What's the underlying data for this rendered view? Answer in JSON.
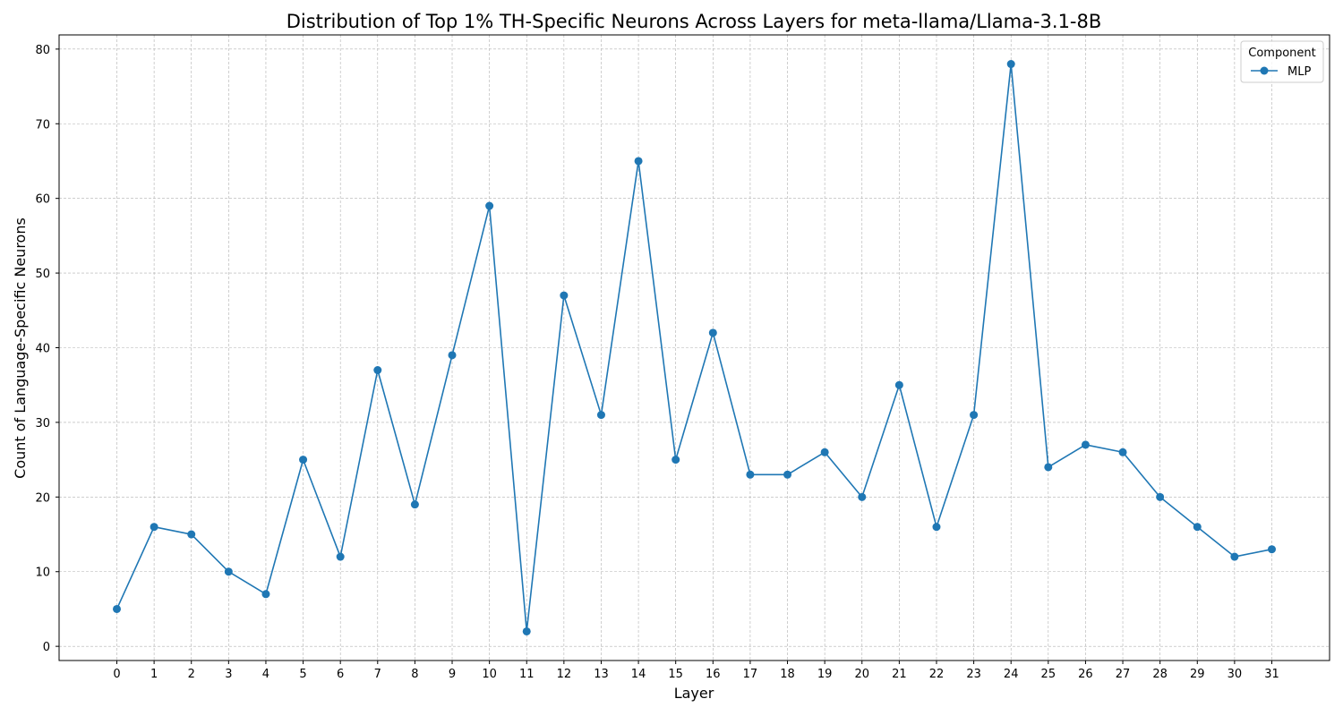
{
  "chart_data": {
    "type": "line",
    "title": "Distribution of Top 1% TH-Specific Neurons Across Layers for meta-llama/Llama-3.1-8B",
    "xlabel": "Layer",
    "ylabel": "Count of Language-Specific Neurons",
    "x": [
      0,
      1,
      2,
      3,
      4,
      5,
      6,
      7,
      8,
      9,
      10,
      11,
      12,
      13,
      14,
      15,
      16,
      17,
      18,
      19,
      20,
      21,
      22,
      23,
      24,
      25,
      26,
      27,
      28,
      29,
      30,
      31
    ],
    "series": [
      {
        "name": "MLP",
        "color": "#1f77b4",
        "marker": "circle",
        "values": [
          5,
          16,
          15,
          10,
          7,
          25,
          12,
          37,
          19,
          39,
          59,
          2,
          47,
          31,
          65,
          25,
          42,
          23,
          23,
          26,
          20,
          35,
          16,
          31,
          78,
          24,
          27,
          26,
          20,
          16,
          12,
          13
        ]
      }
    ],
    "xticks": [
      "0",
      "1",
      "2",
      "3",
      "4",
      "5",
      "6",
      "7",
      "8",
      "9",
      "10",
      "11",
      "12",
      "13",
      "14",
      "15",
      "16",
      "17",
      "18",
      "19",
      "20",
      "21",
      "22",
      "23",
      "24",
      "25",
      "26",
      "27",
      "28",
      "29",
      "30",
      "31"
    ],
    "yticks": [
      0,
      10,
      20,
      30,
      40,
      50,
      60,
      70,
      80
    ],
    "xlim": [
      -1.55,
      32.55
    ],
    "ylim": [
      -1.9,
      81.9
    ],
    "grid": true,
    "grid_style": "dashed",
    "legend": {
      "title": "Component",
      "placement": "top-right",
      "entries": [
        "MLP"
      ]
    }
  }
}
